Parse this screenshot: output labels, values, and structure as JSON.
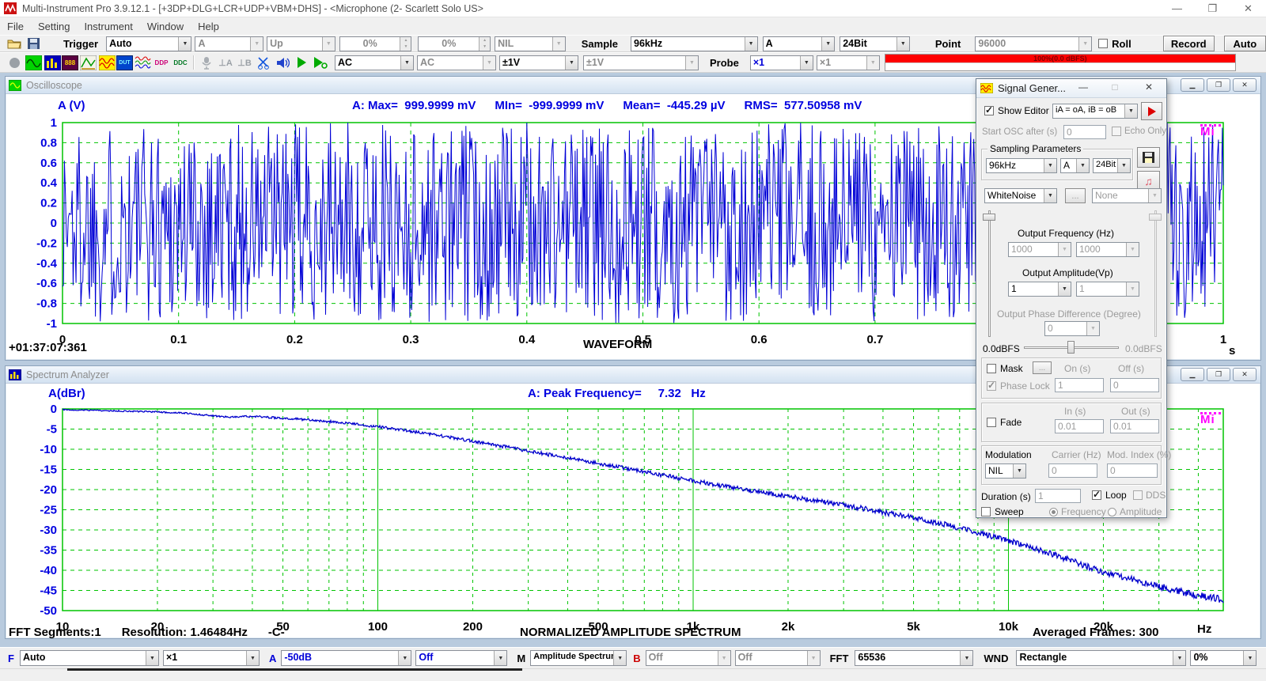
{
  "window": {
    "title": "Multi-Instrument Pro 3.9.12.1   -   [+3DP+DLG+LCR+UDP+VBM+DHS]   -   <Microphone (2- Scarlett Solo US>",
    "controls": {
      "minimize": "—",
      "maximize": "❐",
      "close": "✕"
    }
  },
  "menu": {
    "items": [
      "File",
      "Setting",
      "Instrument",
      "Window",
      "Help"
    ]
  },
  "toolbar1": {
    "trigger_label": "Trigger",
    "trigger_mode": "Auto",
    "trigger_source": "A",
    "trigger_edge": "Up",
    "trigger_level": "0%",
    "trigger_delay": "0%",
    "trigger_hpf": "NIL",
    "sample_label": "Sample",
    "sample_rate": "96kHz",
    "sample_channel": "A",
    "sample_bits": "24Bit",
    "point_label": "Point",
    "point_value": "96000",
    "roll_label": "Roll",
    "record_label": "Record",
    "auto_label": "Auto"
  },
  "toolbar2": {
    "icons": [
      {
        "name": "record-indicator",
        "text": ""
      },
      {
        "name": "oscilloscope",
        "text": ""
      },
      {
        "name": "spectrum-analyzer",
        "text": ""
      },
      {
        "name": "multimeter",
        "text": "888"
      },
      {
        "name": "spectrum-3d-plot",
        "text": ""
      },
      {
        "name": "signal-generator",
        "text": ""
      },
      {
        "name": "device-test-plan",
        "text": "DUT"
      },
      {
        "name": "derived-data-curves",
        "text": ""
      },
      {
        "name": "ddp-viewer",
        "text": "DDP"
      },
      {
        "name": "ddc-array-viewer",
        "text": "DDC"
      },
      {
        "name": "input-device",
        "text": ""
      },
      {
        "name": "trigger-marker-a",
        "text": "⊥A"
      },
      {
        "name": "trigger-marker-b",
        "text": "⊥B"
      },
      {
        "name": "calibration",
        "text": ""
      },
      {
        "name": "sound-device",
        "text": ""
      },
      {
        "name": "run",
        "text": ""
      },
      {
        "name": "run-restart",
        "text": ""
      }
    ],
    "coupling_a": "AC",
    "coupling_b": "AC",
    "range_a": "±1V",
    "range_b": "±1V",
    "probe_label": "Probe",
    "probe_a": "×1",
    "probe_b": "×1",
    "level_meter_text": "100%(0.0 dBFS)"
  },
  "oscilloscope": {
    "title": "Oscilloscope",
    "y_axis_label": "A (V)",
    "stats": [
      {
        "label": "A: Max=",
        "value": "999.9999 mV"
      },
      {
        "label": "MIn=",
        "value": "-999.9999 mV"
      },
      {
        "label": "Mean=",
        "value": "-445.29  µV"
      },
      {
        "label": "RMS=",
        "value": "577.50958 mV"
      }
    ],
    "timestamp": "+01:37:07:361",
    "x_title": "WAVEFORM",
    "x_unit": "s",
    "logo": "Mi"
  },
  "spectrum": {
    "title": "Spectrum Analyzer",
    "y_axis_label": "A(dBr)",
    "peak_label": "A: Peak Frequency=",
    "peak_value": "7.32",
    "peak_unit": "Hz",
    "x_title": "NORMALIZED AMPLITUDE SPECTRUM",
    "x_unit": "Hz",
    "footer_left_1": "FFT Segments:1",
    "footer_left_2": "Resolution: 1.46484Hz",
    "footer_left_3": "-C-",
    "footer_right": "Averaged Frames: 300",
    "logo": "Mi"
  },
  "siggen": {
    "title": "Signal Gener...",
    "controls": {
      "minimize": "—",
      "maximize": "□",
      "close": "✕"
    },
    "show_editor_label": "Show Editor",
    "routing": "iA = oA, iB = oB",
    "start_osc_label": "Start OSC after (s)",
    "start_osc_value": "0",
    "echo_only_label": "Echo Only",
    "sampling_group_label": "Sampling Parameters",
    "rate": "96kHz",
    "channel": "A",
    "bits": "24Bit",
    "wave_type": "WhiteNoise",
    "more_label": "...",
    "modifier": "None",
    "freq_label": "Output Frequency (Hz)",
    "freq_a": "1000",
    "freq_b": "1000",
    "amp_label": "Output Amplitude(Vp)",
    "amp_a": "1",
    "amp_b": "1",
    "phase_label": "Output Phase Difference (Degree)",
    "phase_value": "0",
    "dbfs_left": "0.0dBFS",
    "dbfs_right": "0.0dBFS",
    "mask_label": "Mask",
    "mask_more": "...",
    "on_label": "On (s)",
    "off_label": "Off (s)",
    "phase_lock_label": "Phase Lock",
    "on_value": "1",
    "off_value": "0",
    "fade_label": "Fade",
    "fade_in_label": "In (s)",
    "fade_out_label": "Out (s)",
    "fade_in_value": "0.01",
    "fade_out_value": "0.01",
    "modulation_label": "Modulation",
    "carrier_label": "Carrier (Hz)",
    "mod_index_label": "Mod. Index (%)",
    "modulation_type": "NIL",
    "carrier_value": "0",
    "mod_index_value": "0",
    "duration_label": "Duration (s)",
    "duration_value": "1",
    "loop_label": "Loop",
    "dds_label": "DDS",
    "sweep_label": "Sweep",
    "sweep_freq_label": "Frequency",
    "sweep_amp_label": "Amplitude"
  },
  "bottombar": {
    "f_label": "F",
    "freq_range": "Auto",
    "freq_mult": "×1",
    "a_label": "A",
    "a_range": "-50dB",
    "a_ref": "Off",
    "m_label": "M",
    "mode": "Amplitude Spectrum",
    "b_label": "B",
    "b_range": "Off",
    "b_ref": "Off",
    "fft_label": "FFT",
    "fft_size": "65536",
    "wnd_label": "WND",
    "window_fn": "Rectangle",
    "overlap": "0%"
  },
  "colors": {
    "grid_green": "#00c400",
    "trace_blue": "#0000d6",
    "label_blue": "#0000e0",
    "logo_magenta": "#ff00ff",
    "meter_red": "#ff0000",
    "mdi_background": "#b9cbde"
  },
  "chart_data": [
    {
      "id": "waveform",
      "type": "line",
      "title": "WAVEFORM",
      "ylabel": "A (V)",
      "x_unit": "s",
      "xlim": [
        0,
        1
      ],
      "ylim": [
        -1,
        1
      ],
      "grid": true,
      "x_ticks": [
        {
          "v": 0,
          "l": "0"
        },
        {
          "v": 0.1,
          "l": "0.1"
        },
        {
          "v": 0.2,
          "l": "0.2"
        },
        {
          "v": 0.3,
          "l": "0.3"
        },
        {
          "v": 0.4,
          "l": "0.4"
        },
        {
          "v": 0.5,
          "l": "0.5"
        },
        {
          "v": 0.6,
          "l": "0.6"
        },
        {
          "v": 0.7,
          "l": "0.7"
        },
        {
          "v": 0.8,
          "l": "0.8"
        },
        {
          "v": 0.9,
          "l": "0.9"
        },
        {
          "v": 1,
          "l": "1"
        }
      ],
      "y_ticks": [
        {
          "v": 1,
          "l": "1"
        },
        {
          "v": 0.8,
          "l": "0.8"
        },
        {
          "v": 0.6,
          "l": "0.6"
        },
        {
          "v": 0.4,
          "l": "0.4"
        },
        {
          "v": 0.2,
          "l": "0.2"
        },
        {
          "v": 0,
          "l": "0"
        },
        {
          "v": -0.2,
          "l": "-0.2"
        },
        {
          "v": -0.4,
          "l": "-0.4"
        },
        {
          "v": -0.6,
          "l": "-0.6"
        },
        {
          "v": -0.8,
          "l": "-0.8"
        },
        {
          "v": -1,
          "l": "-1"
        }
      ],
      "series": [
        {
          "name": "A",
          "signal": "uniform-white-noise",
          "samples": 1200,
          "amplitude": 1,
          "seed": 1337,
          "color": "#0000d6"
        }
      ],
      "stats": {
        "max": "999.9999 mV",
        "min": "-999.9999 mV",
        "mean": "-445.29 µV",
        "rms": "577.50958 mV"
      }
    },
    {
      "id": "spectrum",
      "type": "line",
      "title": "NORMALIZED AMPLITUDE SPECTRUM",
      "ylabel": "A(dBr)",
      "x_unit": "Hz",
      "x_scale": "log",
      "xlim": [
        10,
        48000
      ],
      "ylim": [
        -50,
        0
      ],
      "grid": true,
      "x_ticks": [
        {
          "v": 10,
          "l": "10"
        },
        {
          "v": 20,
          "l": "20"
        },
        {
          "v": 50,
          "l": "50"
        },
        {
          "v": 100,
          "l": "100"
        },
        {
          "v": 200,
          "l": "200"
        },
        {
          "v": 500,
          "l": "500"
        },
        {
          "v": 1000,
          "l": "1k"
        },
        {
          "v": 2000,
          "l": "2k"
        },
        {
          "v": 5000,
          "l": "5k"
        },
        {
          "v": 10000,
          "l": "10k"
        },
        {
          "v": 20000,
          "l": "20k"
        }
      ],
      "y_ticks": [
        0,
        -5,
        -10,
        -15,
        -20,
        -25,
        -30,
        -35,
        -40,
        -45,
        -50
      ],
      "series": [
        {
          "name": "A",
          "color": "#0000cc",
          "jitter_seed": 909,
          "points": [
            [
              10,
              -0.2
            ],
            [
              14,
              -0.45
            ],
            [
              20,
              -0.75
            ],
            [
              25,
              -1.1
            ],
            [
              30,
              -1.7
            ],
            [
              34,
              -2.1
            ],
            [
              38,
              -1.8
            ],
            [
              45,
              -2.1
            ],
            [
              55,
              -2.5
            ],
            [
              70,
              -3.1
            ],
            [
              85,
              -3.8
            ],
            [
              100,
              -4.4
            ],
            [
              130,
              -5.6
            ],
            [
              160,
              -6.7
            ],
            [
              200,
              -8.0
            ],
            [
              250,
              -9.3
            ],
            [
              320,
              -10.8
            ],
            [
              400,
              -12.2
            ],
            [
              500,
              -13.5
            ],
            [
              650,
              -15.1
            ],
            [
              800,
              -16.4
            ],
            [
              1000,
              -17.8
            ],
            [
              1300,
              -19.4
            ],
            [
              1600,
              -20.5
            ],
            [
              2000,
              -21.7
            ],
            [
              2600,
              -23.1
            ],
            [
              3300,
              -24.4
            ],
            [
              4200,
              -25.9
            ],
            [
              5000,
              -27.0
            ],
            [
              6500,
              -28.9
            ],
            [
              8000,
              -30.6
            ],
            [
              10000,
              -32.6
            ],
            [
              13000,
              -35.3
            ],
            [
              16000,
              -37.8
            ],
            [
              20000,
              -40.4
            ],
            [
              25000,
              -42.4
            ],
            [
              30000,
              -44.0
            ],
            [
              38000,
              -45.9
            ],
            [
              48000,
              -47.3
            ]
          ]
        }
      ],
      "peak_frequency_hz": 7.32,
      "averaged_frames": 300,
      "fft_segments": 1,
      "resolution_hz": 1.46484
    }
  ]
}
